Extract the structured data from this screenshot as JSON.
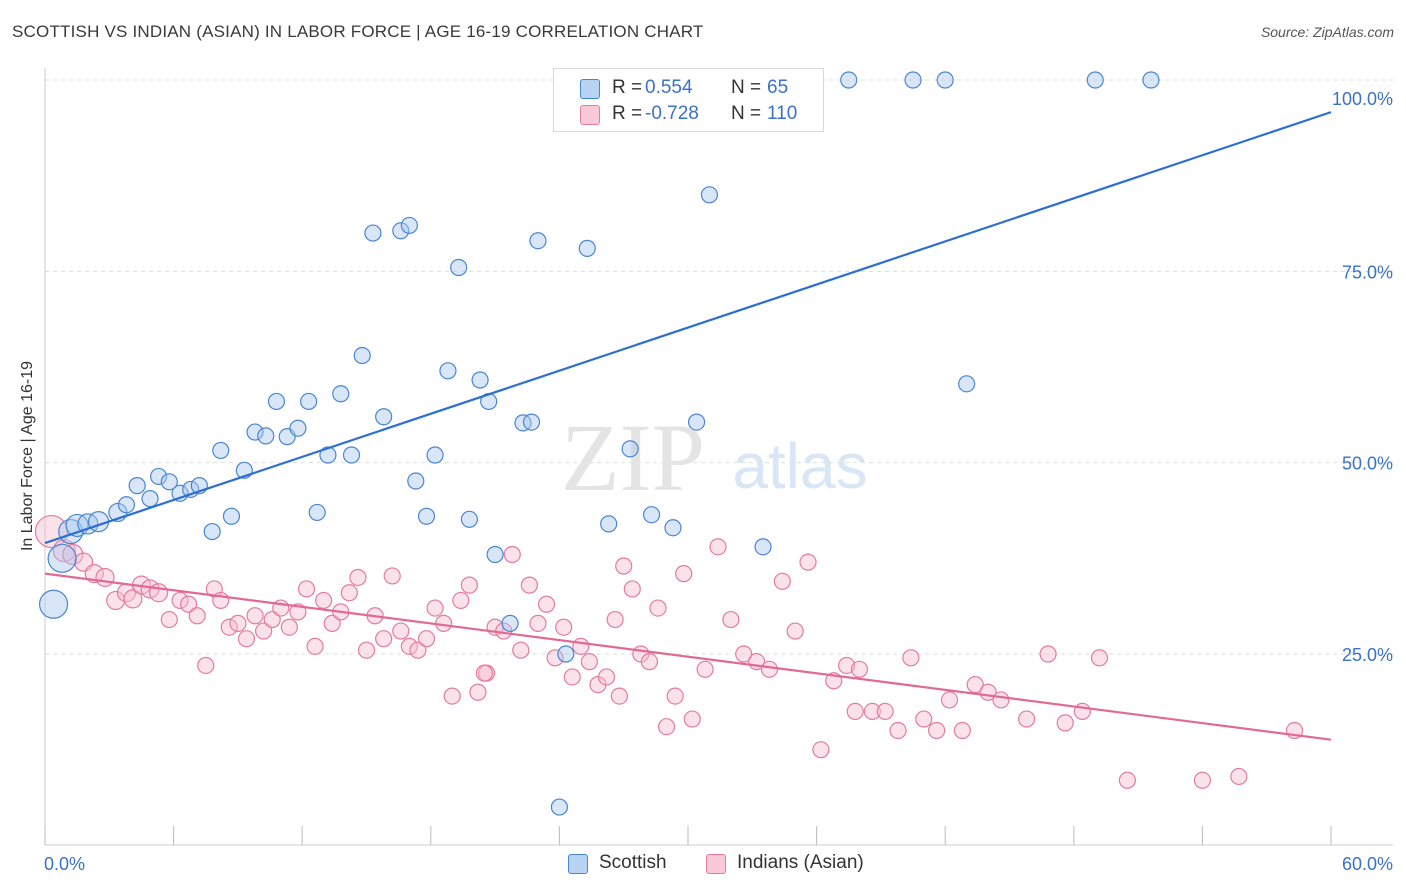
{
  "title": "SCOTTISH VS INDIAN (ASIAN) IN LABOR FORCE | AGE 16-19 CORRELATION CHART",
  "source": "Source: ZipAtlas.com",
  "watermark": {
    "zip": "ZIP",
    "atlas": "atlas"
  },
  "colors": {
    "scottish_fill": "#a9c8f0",
    "scottish_stroke": "#4a86d0",
    "scottish_line": "#2d6fd0",
    "indian_fill": "#f7bcd0",
    "indian_stroke": "#e27ca0",
    "indian_line": "#e06a96",
    "axis_text": "#3a72c4",
    "grid": "#dddddd"
  },
  "legend_top": {
    "rows": [
      {
        "r_label": "R =",
        "r_value": "0.554",
        "n_label": "N =",
        "n_value": "65"
      },
      {
        "r_label": "R =",
        "r_value": "-0.728",
        "n_label": "N =",
        "n_value": "110"
      }
    ]
  },
  "legend_bottom": {
    "items": [
      "Scottish",
      "Indians (Asian)"
    ]
  },
  "chart_data": {
    "type": "scatter",
    "title": "SCOTTISH VS INDIAN (ASIAN) IN LABOR FORCE | AGE 16-19 CORRELATION CHART",
    "xlabel": "",
    "ylabel": "In Labor Force | Age 16-19",
    "xlim": [
      0,
      60
    ],
    "ylim": [
      0,
      102
    ],
    "x_tick_labels": [
      "0.0%",
      "60.0%"
    ],
    "y_tick_labels": [
      "25.0%",
      "50.0%",
      "75.0%",
      "100.0%"
    ],
    "y_ticks": [
      25,
      50,
      75,
      100
    ],
    "grid": true,
    "legend_position": "top-center",
    "series": [
      {
        "name": "Scottish",
        "r": 0.554,
        "n": 65,
        "trend": {
          "x0": 0,
          "y0": 39.5,
          "x1": 60,
          "y1": 95.8
        },
        "points": [
          [
            0.4,
            31.5,
            14
          ],
          [
            0.8,
            37.5,
            14
          ],
          [
            1.2,
            41,
            12
          ],
          [
            1.5,
            41.8,
            11
          ],
          [
            2,
            42,
            10
          ],
          [
            2.5,
            42.3,
            10
          ],
          [
            3.4,
            43.5,
            9
          ],
          [
            3.8,
            44.5,
            8
          ],
          [
            4.3,
            47,
            8
          ],
          [
            4.9,
            45.3,
            8
          ],
          [
            5.3,
            48.2,
            8
          ],
          [
            5.8,
            47.5,
            8
          ],
          [
            6.3,
            46,
            8
          ],
          [
            6.8,
            46.5,
            8
          ],
          [
            7.2,
            47,
            8
          ],
          [
            7.8,
            41,
            8
          ],
          [
            8.2,
            51.6,
            8
          ],
          [
            8.7,
            43,
            8
          ],
          [
            9.3,
            49,
            8
          ],
          [
            9.8,
            54,
            8
          ],
          [
            10.3,
            53.5,
            8
          ],
          [
            10.8,
            58,
            8
          ],
          [
            11.3,
            53.4,
            8
          ],
          [
            11.8,
            54.5,
            8
          ],
          [
            12.3,
            58,
            8
          ],
          [
            12.7,
            43.5,
            8
          ],
          [
            13.2,
            51,
            8
          ],
          [
            13.8,
            59,
            8
          ],
          [
            14.3,
            51,
            8
          ],
          [
            14.8,
            64,
            8
          ],
          [
            15.3,
            80,
            8
          ],
          [
            15.8,
            56,
            8
          ],
          [
            16.6,
            80.3,
            8
          ],
          [
            17,
            81,
            8
          ],
          [
            17.3,
            47.6,
            8
          ],
          [
            17.8,
            43,
            8
          ],
          [
            18.2,
            51,
            8
          ],
          [
            18.8,
            62,
            8
          ],
          [
            19.3,
            75.5,
            8
          ],
          [
            19.8,
            42.6,
            8
          ],
          [
            20.3,
            60.8,
            8
          ],
          [
            20.7,
            58,
            8
          ],
          [
            21,
            38,
            8
          ],
          [
            21.7,
            29,
            8
          ],
          [
            22.3,
            55.2,
            8
          ],
          [
            22.7,
            55.3,
            8
          ],
          [
            23,
            79,
            8
          ],
          [
            24,
            5,
            8
          ],
          [
            24.3,
            25,
            8
          ],
          [
            25.3,
            78,
            8
          ],
          [
            26.3,
            42,
            8
          ],
          [
            27.3,
            51.8,
            8
          ],
          [
            28.3,
            43.2,
            8
          ],
          [
            29.3,
            41.5,
            8
          ],
          [
            30.4,
            55.3,
            8
          ],
          [
            31,
            85,
            8
          ],
          [
            33.5,
            39,
            8
          ],
          [
            37.5,
            100,
            8
          ],
          [
            40.5,
            100,
            8
          ],
          [
            42,
            100,
            8
          ],
          [
            43,
            60.3,
            8
          ],
          [
            49,
            100,
            8
          ],
          [
            51.6,
            100,
            8
          ],
          [
            24.5,
            100,
            8
          ],
          [
            28.8,
            100,
            8
          ]
        ]
      },
      {
        "name": "Indians (Asian)",
        "r": -0.728,
        "n": 110,
        "trend": {
          "x0": 0,
          "y0": 35.5,
          "x1": 60,
          "y1": 13.8
        },
        "points": [
          [
            0.3,
            41,
            16
          ],
          [
            0.9,
            38.5,
            11
          ],
          [
            1.3,
            38,
            10
          ],
          [
            1.8,
            37,
            9
          ],
          [
            2.3,
            35.5,
            9
          ],
          [
            2.8,
            35,
            9
          ],
          [
            3.3,
            32,
            9
          ],
          [
            3.8,
            33,
            9
          ],
          [
            4.1,
            32.2,
            9
          ],
          [
            4.5,
            34,
            9
          ],
          [
            4.9,
            33.5,
            9
          ],
          [
            5.3,
            33,
            9
          ],
          [
            5.8,
            29.5,
            8
          ],
          [
            6.3,
            32,
            8
          ],
          [
            6.7,
            31.5,
            8
          ],
          [
            7.1,
            30,
            8
          ],
          [
            7.5,
            23.5,
            8
          ],
          [
            7.9,
            33.5,
            8
          ],
          [
            8.2,
            32,
            8
          ],
          [
            8.6,
            28.5,
            8
          ],
          [
            9,
            29,
            8
          ],
          [
            9.4,
            27,
            8
          ],
          [
            9.8,
            30,
            8
          ],
          [
            10.2,
            28,
            8
          ],
          [
            10.6,
            29.5,
            8
          ],
          [
            11,
            31,
            8
          ],
          [
            11.4,
            28.5,
            8
          ],
          [
            11.8,
            30.5,
            8
          ],
          [
            12.2,
            33.5,
            8
          ],
          [
            12.6,
            26,
            8
          ],
          [
            13,
            32,
            8
          ],
          [
            13.4,
            29,
            8
          ],
          [
            13.8,
            30.5,
            8
          ],
          [
            14.2,
            33,
            8
          ],
          [
            14.6,
            35,
            8
          ],
          [
            15,
            25.5,
            8
          ],
          [
            15.4,
            30,
            8
          ],
          [
            15.8,
            27,
            8
          ],
          [
            16.2,
            35.2,
            8
          ],
          [
            16.6,
            28,
            8
          ],
          [
            17,
            26,
            8
          ],
          [
            17.4,
            25.5,
            8
          ],
          [
            17.8,
            27,
            8
          ],
          [
            18.2,
            31,
            8
          ],
          [
            18.6,
            29,
            8
          ],
          [
            19,
            19.5,
            8
          ],
          [
            19.4,
            32,
            8
          ],
          [
            19.8,
            34,
            8
          ],
          [
            20.2,
            20,
            8
          ],
          [
            20.6,
            22.5,
            8
          ],
          [
            21,
            28.5,
            8
          ],
          [
            21.4,
            28,
            8
          ],
          [
            21.8,
            38,
            8
          ],
          [
            22.2,
            25.5,
            8
          ],
          [
            22.6,
            34,
            8
          ],
          [
            23,
            29,
            8
          ],
          [
            23.4,
            31.5,
            8
          ],
          [
            23.8,
            24.5,
            8
          ],
          [
            24.2,
            28.5,
            8
          ],
          [
            24.6,
            22,
            8
          ],
          [
            25,
            26,
            8
          ],
          [
            25.4,
            24,
            8
          ],
          [
            25.8,
            21,
            8
          ],
          [
            26.2,
            22,
            8
          ],
          [
            26.6,
            29.5,
            8
          ],
          [
            27,
            36.5,
            8
          ],
          [
            27.4,
            33.5,
            8
          ],
          [
            27.8,
            25,
            8
          ],
          [
            28.2,
            24,
            8
          ],
          [
            28.6,
            31,
            8
          ],
          [
            29,
            15.5,
            8
          ],
          [
            29.4,
            19.5,
            8
          ],
          [
            29.8,
            35.5,
            8
          ],
          [
            30.2,
            16.5,
            8
          ],
          [
            30.8,
            23,
            8
          ],
          [
            31.4,
            39,
            8
          ],
          [
            32,
            29.5,
            8
          ],
          [
            32.6,
            25,
            8
          ],
          [
            33.2,
            24,
            8
          ],
          [
            33.8,
            23,
            8
          ],
          [
            34.4,
            34.5,
            8
          ],
          [
            35,
            28,
            8
          ],
          [
            35.6,
            37,
            8
          ],
          [
            36.2,
            12.5,
            8
          ],
          [
            36.8,
            21.5,
            8
          ],
          [
            37.4,
            23.5,
            8
          ],
          [
            38,
            23,
            8
          ],
          [
            38.6,
            17.5,
            8
          ],
          [
            39.2,
            17.5,
            8
          ],
          [
            39.8,
            15,
            8
          ],
          [
            40.4,
            24.5,
            8
          ],
          [
            41,
            16.5,
            8
          ],
          [
            41.6,
            15,
            8
          ],
          [
            42.2,
            19,
            8
          ],
          [
            42.8,
            15,
            8
          ],
          [
            43.4,
            21,
            8
          ],
          [
            44,
            20,
            8
          ],
          [
            44.6,
            19,
            8
          ],
          [
            45.8,
            16.5,
            8
          ],
          [
            46.8,
            25,
            8
          ],
          [
            47.6,
            16,
            8
          ],
          [
            48.4,
            17.5,
            8
          ],
          [
            49.2,
            24.5,
            8
          ],
          [
            50.5,
            8.5,
            8
          ],
          [
            54,
            8.5,
            8
          ],
          [
            55.7,
            9,
            8
          ],
          [
            58.3,
            15,
            8
          ],
          [
            20.5,
            22.5,
            8
          ],
          [
            26.8,
            19.5,
            8
          ],
          [
            37.8,
            17.5,
            8
          ]
        ]
      }
    ]
  }
}
